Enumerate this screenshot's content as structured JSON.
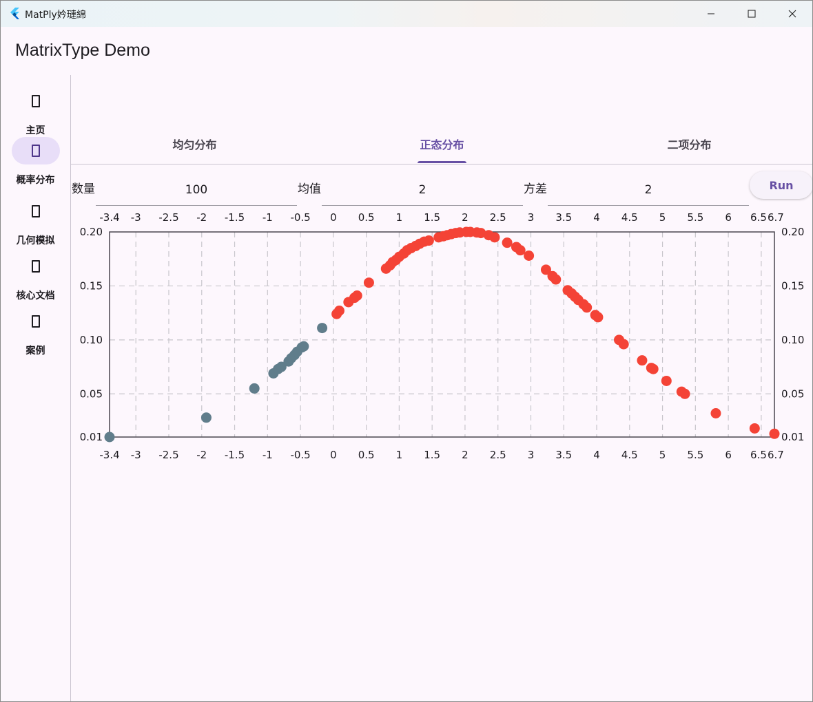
{
  "window": {
    "title": "MatPly妗璉綿",
    "minimize_icon": "minimize-icon",
    "maximize_icon": "maximize-icon",
    "close_icon": "close-icon"
  },
  "app": {
    "title": "MatrixType Demo"
  },
  "rail": {
    "items": [
      {
        "label": "主页",
        "icon": "placeholder-icon",
        "active": false
      },
      {
        "label": "概率分布",
        "icon": "placeholder-icon",
        "active": true
      },
      {
        "label": "几何模拟",
        "icon": "placeholder-icon",
        "active": false
      },
      {
        "label": "核心文档",
        "icon": "placeholder-icon",
        "active": false
      },
      {
        "label": "案例",
        "icon": "placeholder-icon",
        "active": false
      }
    ]
  },
  "tabs": [
    {
      "label": "均匀分布",
      "active": false
    },
    {
      "label": "正态分布",
      "active": true
    },
    {
      "label": "二项分布",
      "active": false
    }
  ],
  "params": {
    "count_label": "数量",
    "count_value": "100",
    "mean_label": "均值",
    "mean_value": "2",
    "variance_label": "方差",
    "variance_value": "2",
    "run_label": "Run"
  },
  "colors": {
    "accent": "#6750a4",
    "series_above_mean_minus_sd": "#f44336",
    "series_below": "#607d8b",
    "grid": "#c8c6cc",
    "axis": "#49454f"
  },
  "chart_data": {
    "type": "scatter",
    "title": "",
    "xlabel": "",
    "ylabel": "",
    "xlim": [
      -3.4,
      6.7
    ],
    "ylim": [
      0.01,
      0.2
    ],
    "x_ticks": [
      "-3.4",
      "-3",
      "-2.5",
      "-2",
      "-1.5",
      "-1",
      "-0.5",
      "0",
      "0.5",
      "1",
      "1.5",
      "2",
      "2.5",
      "3",
      "3.5",
      "4",
      "4.5",
      "5",
      "5.5",
      "6",
      "6.5",
      "6.7"
    ],
    "y_ticks": [
      "0.20",
      "0.15",
      "0.10",
      "0.05",
      "0.01"
    ],
    "grid": true,
    "series": [
      {
        "color": "#607d8b",
        "points": [
          [
            -3.4,
            0.01
          ],
          [
            -1.93,
            0.028
          ],
          [
            -1.2,
            0.055
          ],
          [
            -0.91,
            0.069
          ],
          [
            -0.84,
            0.073
          ],
          [
            -0.79,
            0.075
          ],
          [
            -0.68,
            0.08
          ],
          [
            -0.64,
            0.083
          ],
          [
            -0.59,
            0.086
          ],
          [
            -0.55,
            0.089
          ],
          [
            -0.48,
            0.093
          ],
          [
            -0.45,
            0.094
          ],
          [
            -0.17,
            0.111
          ]
        ]
      },
      {
        "color": "#f44336",
        "points": [
          [
            0.05,
            0.124
          ],
          [
            0.09,
            0.127
          ],
          [
            0.23,
            0.135
          ],
          [
            0.32,
            0.139
          ],
          [
            0.36,
            0.141
          ],
          [
            0.54,
            0.153
          ],
          [
            0.8,
            0.166
          ],
          [
            0.86,
            0.169
          ],
          [
            0.9,
            0.172
          ],
          [
            0.95,
            0.174
          ],
          [
            1.0,
            0.177
          ],
          [
            1.07,
            0.18
          ],
          [
            1.12,
            0.183
          ],
          [
            1.18,
            0.185
          ],
          [
            1.25,
            0.187
          ],
          [
            1.31,
            0.189
          ],
          [
            1.38,
            0.191
          ],
          [
            1.45,
            0.192
          ],
          [
            1.6,
            0.195
          ],
          [
            1.67,
            0.196
          ],
          [
            1.73,
            0.197
          ],
          [
            1.79,
            0.198
          ],
          [
            1.86,
            0.199
          ],
          [
            1.92,
            0.1995
          ],
          [
            2.02,
            0.2
          ],
          [
            2.08,
            0.2
          ],
          [
            2.18,
            0.1995
          ],
          [
            2.24,
            0.199
          ],
          [
            2.36,
            0.197
          ],
          [
            2.45,
            0.195
          ],
          [
            2.64,
            0.19
          ],
          [
            2.78,
            0.186
          ],
          [
            2.84,
            0.183
          ],
          [
            2.97,
            0.178
          ],
          [
            3.23,
            0.165
          ],
          [
            3.33,
            0.159
          ],
          [
            3.38,
            0.156
          ],
          [
            3.56,
            0.146
          ],
          [
            3.62,
            0.143
          ],
          [
            3.67,
            0.14
          ],
          [
            3.72,
            0.137
          ],
          [
            3.8,
            0.133
          ],
          [
            3.85,
            0.13
          ],
          [
            3.98,
            0.123
          ],
          [
            4.02,
            0.121
          ],
          [
            4.34,
            0.1
          ],
          [
            4.41,
            0.096
          ],
          [
            4.69,
            0.081
          ],
          [
            4.83,
            0.074
          ],
          [
            4.86,
            0.073
          ],
          [
            5.06,
            0.062
          ],
          [
            5.29,
            0.052
          ],
          [
            5.34,
            0.05
          ],
          [
            5.81,
            0.032
          ],
          [
            6.4,
            0.018
          ],
          [
            6.7,
            0.013
          ]
        ]
      }
    ]
  }
}
